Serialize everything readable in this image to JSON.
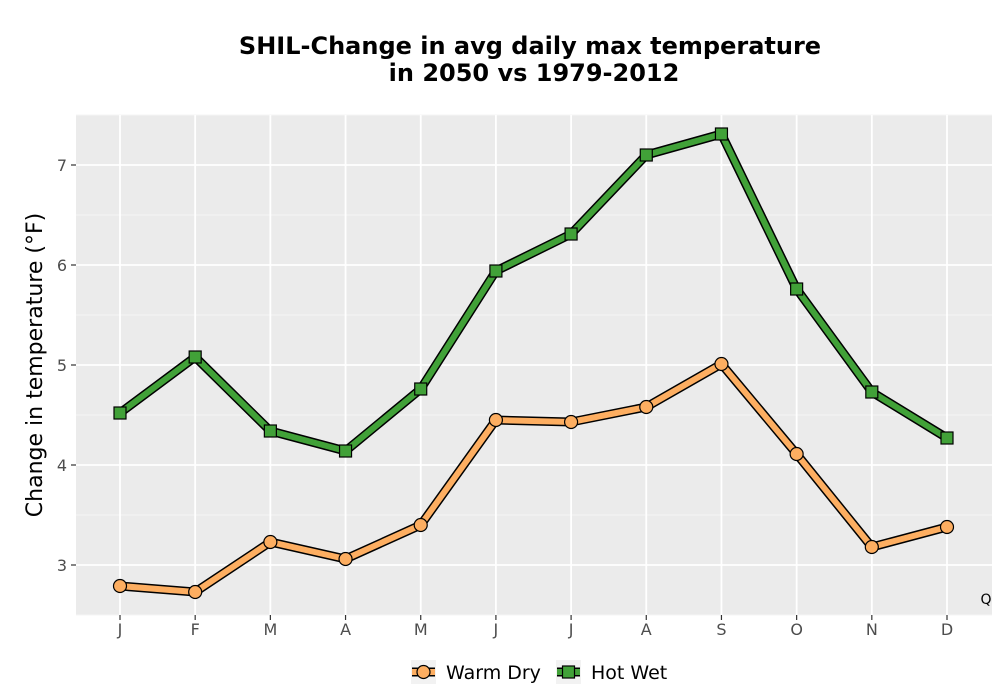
{
  "chart_data": {
    "type": "line",
    "title_line1": "SHIL-Change in avg daily max temperature",
    "title_line2": "in 2050 vs 1979-2012",
    "xlabel": "",
    "ylabel": "Change in temperature (°F)",
    "categories": [
      "J",
      "F",
      "M",
      "A",
      "M",
      "J",
      "J",
      "A",
      "S",
      "O",
      "N",
      "D"
    ],
    "ylim": [
      2.5,
      7.5
    ],
    "yticks": [
      3,
      4,
      5,
      6,
      7
    ],
    "grid": true,
    "legend_position": "bottom",
    "corner_label": "Q",
    "series": [
      {
        "name": "Warm Dry",
        "marker": "circle",
        "color": "#FDAE61",
        "values": [
          2.79,
          2.73,
          3.23,
          3.06,
          3.4,
          4.45,
          4.43,
          4.58,
          5.01,
          4.11,
          3.18,
          3.38
        ]
      },
      {
        "name": "Hot Wet",
        "marker": "square",
        "color": "#41A138",
        "values": [
          4.52,
          5.08,
          4.34,
          4.14,
          4.76,
          5.94,
          6.31,
          7.1,
          7.31,
          5.76,
          4.73,
          4.27
        ]
      }
    ]
  }
}
